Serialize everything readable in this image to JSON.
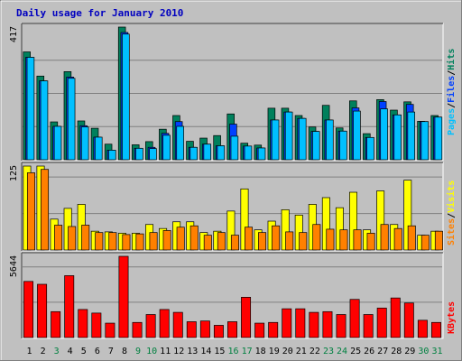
{
  "title": "Daily usage for January 2010",
  "x_days": [
    "1",
    "2",
    "3",
    "4",
    "5",
    "6",
    "7",
    "8",
    "9",
    "10",
    "11",
    "12",
    "13",
    "14",
    "15",
    "16",
    "17",
    "18",
    "19",
    "20",
    "21",
    "22",
    "23",
    "24",
    "25",
    "26",
    "27",
    "28",
    "29",
    "30",
    "31"
  ],
  "weekend_days": [
    "3",
    "9",
    "10",
    "16",
    "17",
    "23",
    "24",
    "30",
    "31"
  ],
  "colors": {
    "background": "#c0c0c0",
    "title": "#0000c0",
    "grid": "#808080",
    "hits": "#00805c",
    "files": "#0040ff",
    "pages": "#00c0ff",
    "visits": "#ffff00",
    "sites": "#ff8000",
    "kbytes": "#ff0000",
    "day_label": "#000000",
    "weekend_label": "#008040"
  },
  "chart_data": [
    {
      "type": "bar",
      "panel": "top",
      "ymax_label": "417",
      "legend": [
        {
          "text": "Pages",
          "color": "#00c0ff"
        },
        {
          "text": "/",
          "color": "#000000"
        },
        {
          "text": "Files",
          "color": "#0040ff"
        },
        {
          "text": "/",
          "color": "#000000"
        },
        {
          "text": "Hits",
          "color": "#00805c"
        }
      ],
      "ylim": [
        0,
        417
      ],
      "series": [
        {
          "key": "hits",
          "values": [
            339,
            263,
            119,
            277,
            122,
            99,
            49,
            417,
            47,
            57,
            96,
            139,
            58,
            68,
            76,
            144,
            52,
            46,
            162,
            162,
            139,
            103,
            171,
            100,
            185,
            82,
            189,
            156,
            182,
            121,
            139
          ]
        },
        {
          "key": "files",
          "values": [
            322,
            248,
            105,
            260,
            107,
            71,
            30,
            400,
            36,
            39,
            83,
            120,
            39,
            49,
            44,
            112,
            43,
            37,
            125,
            150,
            130,
            89,
            125,
            90,
            163,
            70,
            183,
            141,
            174,
            120,
            134
          ]
        },
        {
          "key": "pages",
          "values": [
            322,
            248,
            105,
            256,
            103,
            71,
            30,
            395,
            36,
            35,
            77,
            105,
            39,
            49,
            44,
            74,
            43,
            37,
            125,
            150,
            130,
            89,
            125,
            90,
            153,
            70,
            160,
            141,
            150,
            120,
            134
          ]
        }
      ]
    },
    {
      "type": "bar",
      "panel": "middle",
      "ymax_label": "125",
      "legend": [
        {
          "text": "Sites",
          "color": "#ff8000"
        },
        {
          "text": "/",
          "color": "#000000"
        },
        {
          "text": "Visits",
          "color": "#ffff00"
        }
      ],
      "ylim": [
        0,
        125
      ],
      "series": [
        {
          "key": "visits",
          "values": [
            125,
            125,
            46,
            62,
            68,
            28,
            27,
            25,
            25,
            38,
            32,
            42,
            42,
            26,
            28,
            58,
            91,
            30,
            43,
            60,
            52,
            68,
            78,
            63,
            86,
            30,
            88,
            38,
            104,
            22,
            28
          ]
        },
        {
          "key": "sites",
          "values": [
            115,
            120,
            37,
            35,
            37,
            26,
            26,
            23,
            24,
            26,
            29,
            34,
            36,
            22,
            26,
            22,
            34,
            26,
            36,
            27,
            26,
            38,
            31,
            30,
            30,
            25,
            38,
            32,
            36,
            22,
            28
          ]
        }
      ]
    },
    {
      "type": "bar",
      "panel": "bottom",
      "ymax_label": "5644",
      "legend": [
        {
          "text": "KBytes",
          "color": "#ff0000"
        }
      ],
      "ylim": [
        0,
        5644
      ],
      "series": [
        {
          "key": "kbytes",
          "values": [
            3900,
            3700,
            1800,
            4300,
            1950,
            1700,
            1000,
            5644,
            1050,
            1600,
            1950,
            1750,
            1100,
            1150,
            850,
            1100,
            2800,
            1000,
            1050,
            2000,
            2000,
            1750,
            1800,
            1600,
            2650,
            1600,
            2050,
            2750,
            2400,
            1200,
            1050
          ]
        }
      ]
    }
  ]
}
